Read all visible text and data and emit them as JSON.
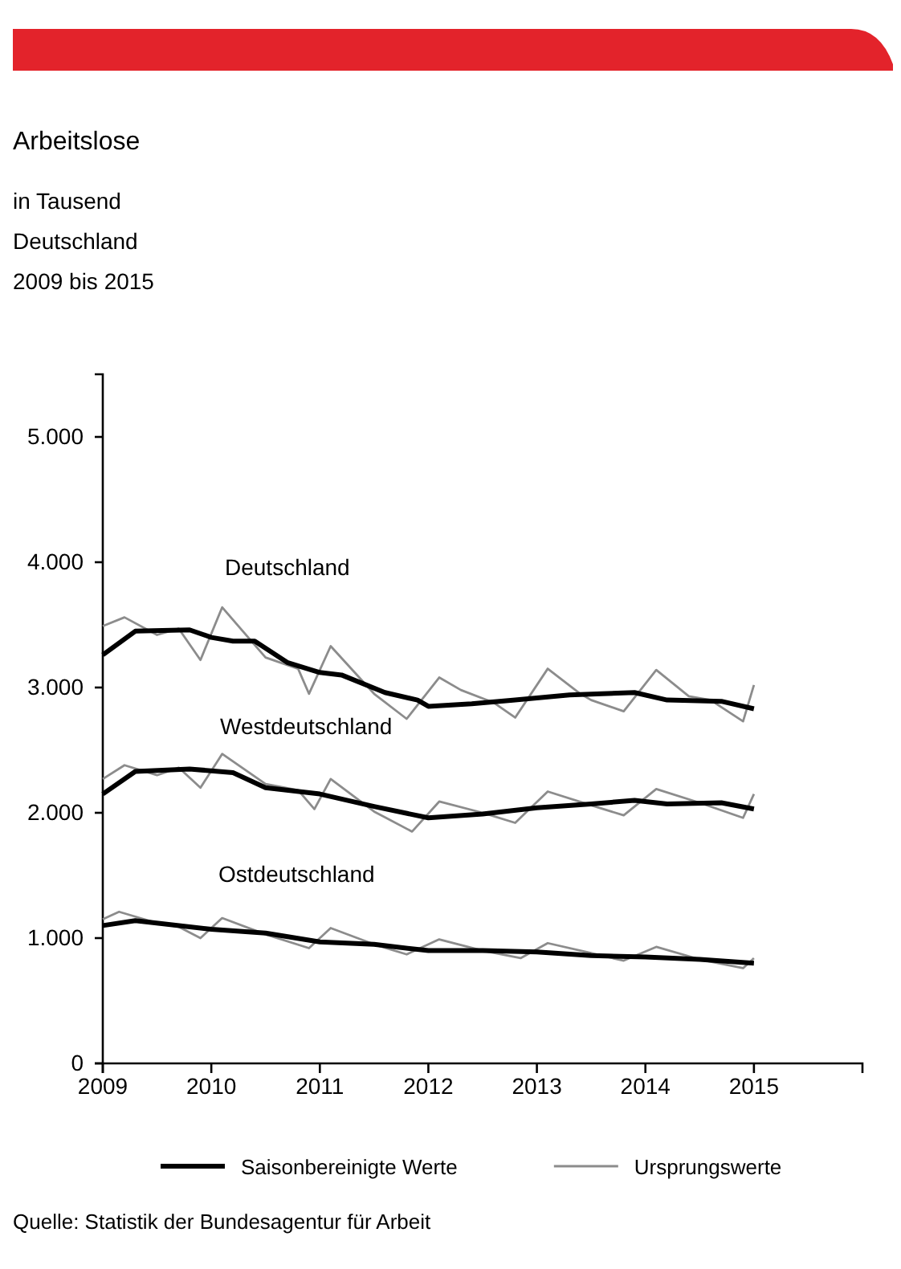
{
  "chart_data": {
    "type": "line",
    "title": "Arbeitslose",
    "subtitle": "in Tausend\nDeutschland\n2009 bis 2015",
    "xlim": [
      2009,
      2016
    ],
    "xticks": [
      2009,
      2010,
      2011,
      2012,
      2013,
      2014,
      2015
    ],
    "ylim": [
      0,
      5500
    ],
    "yticks": [
      0,
      {
        "value": 1000,
        "label": "1.000"
      },
      {
        "value": 2000,
        "label": "2.000"
      },
      {
        "value": 3000,
        "label": "3.000"
      },
      {
        "value": 4000,
        "label": "4.000"
      },
      {
        "value": 5000,
        "label": "5.000"
      }
    ],
    "grid": false,
    "legend": "bottom",
    "marker": "none",
    "line_style": "solid",
    "series": [
      {
        "name": "Ursprungswerte",
        "color": "#8c8c8c",
        "x": [
          2009.0,
          2009.2,
          2009.5,
          2009.7,
          2009.9,
          2010.1,
          2010.5,
          2010.8,
          2010.9,
          2011.1,
          2011.5,
          2011.8,
          2012.1,
          2012.3,
          2012.6,
          2012.8,
          2013.1,
          2013.4,
          2013.5,
          2013.8,
          2014.1,
          2014.4,
          2014.6,
          2014.9,
          2015.0
        ],
        "values": [
          3490,
          3560,
          3420,
          3470,
          3220,
          3640,
          3240,
          3150,
          2950,
          3330,
          2950,
          2750,
          3080,
          2980,
          2880,
          2760,
          3150,
          2950,
          2900,
          2810,
          3140,
          2930,
          2900,
          2730,
          3020
        ]
      },
      {
        "color": "#8c8c8c",
        "x": [
          2009.0,
          2009.2,
          2009.5,
          2009.7,
          2009.9,
          2010.1,
          2010.5,
          2010.8,
          2010.95,
          2011.1,
          2011.5,
          2011.85,
          2012.1,
          2012.5,
          2012.8,
          2013.1,
          2013.5,
          2013.8,
          2014.1,
          2014.5,
          2014.9,
          2015.0
        ],
        "values": [
          2270,
          2380,
          2300,
          2360,
          2200,
          2470,
          2230,
          2180,
          2030,
          2270,
          2010,
          1850,
          2090,
          2000,
          1920,
          2170,
          2060,
          1980,
          2190,
          2080,
          1960,
          2150
        ]
      },
      {
        "color": "#8c8c8c",
        "x": [
          2009.0,
          2009.15,
          2009.5,
          2009.7,
          2009.9,
          2010.1,
          2010.5,
          2010.9,
          2011.1,
          2011.5,
          2011.8,
          2012.1,
          2012.5,
          2012.85,
          2013.1,
          2013.5,
          2013.8,
          2014.1,
          2014.5,
          2014.9,
          2015.0
        ],
        "values": [
          1150,
          1210,
          1120,
          1090,
          1000,
          1160,
          1030,
          920,
          1080,
          950,
          870,
          990,
          900,
          840,
          960,
          880,
          820,
          930,
          830,
          760,
          840
        ]
      },
      {
        "name": "Saisonbereinigte Werte",
        "color": "#000000",
        "x": [
          2009.0,
          2009.3,
          2009.8,
          2010.0,
          2010.2,
          2010.4,
          2010.7,
          2011.0,
          2011.2,
          2011.6,
          2011.9,
          2012.0,
          2012.4,
          2012.8,
          2013.3,
          2013.6,
          2013.9,
          2014.2,
          2014.7,
          2015.0
        ],
        "values": [
          3260,
          3450,
          3460,
          3400,
          3370,
          3370,
          3200,
          3120,
          3100,
          2960,
          2900,
          2850,
          2870,
          2900,
          2940,
          2950,
          2960,
          2900,
          2890,
          2830
        ]
      },
      {
        "color": "#000000",
        "x": [
          2009.0,
          2009.3,
          2009.8,
          2010.2,
          2010.5,
          2011.0,
          2011.5,
          2012.0,
          2012.5,
          2013.0,
          2013.5,
          2013.9,
          2014.2,
          2014.7,
          2015.0
        ],
        "values": [
          2150,
          2330,
          2350,
          2320,
          2200,
          2150,
          2050,
          1960,
          1990,
          2040,
          2070,
          2100,
          2070,
          2080,
          2030
        ]
      },
      {
        "color": "#000000",
        "x": [
          2009.0,
          2009.3,
          2010.0,
          2010.5,
          2011.0,
          2011.5,
          2012.0,
          2012.5,
          2013.0,
          2013.5,
          2014.0,
          2014.5,
          2015.0
        ],
        "values": [
          1100,
          1140,
          1070,
          1040,
          970,
          950,
          900,
          900,
          890,
          860,
          850,
          830,
          800
        ]
      }
    ],
    "annotations": [
      "Deutschland",
      "Westdeutschland",
      "Ostdeutschland",
      "Quelle: Statistik der Bundesagentur für Arbeit"
    ]
  }
}
